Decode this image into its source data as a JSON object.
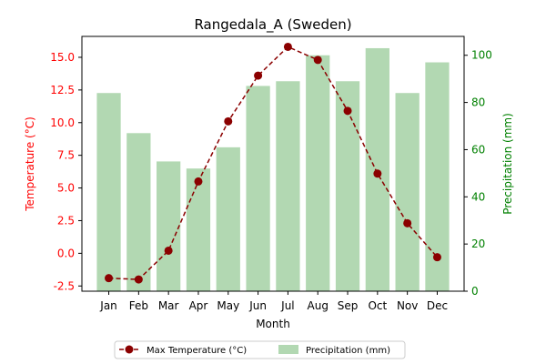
{
  "chart_data": {
    "type": "bar",
    "title": "Rangedala_A (Sweden)",
    "xlabel": "Month",
    "ylabel_left": "Temperature (°C)",
    "ylabel_right": "Precipitation (mm)",
    "categories": [
      "Jan",
      "Feb",
      "Mar",
      "Apr",
      "May",
      "Jun",
      "Jul",
      "Aug",
      "Sep",
      "Oct",
      "Nov",
      "Dec"
    ],
    "ylim_left": [
      -2.9,
      16.6
    ],
    "ylim_right": [
      0,
      108
    ],
    "yticks_left": [
      "-2.5",
      "0.0",
      "2.5",
      "5.0",
      "7.5",
      "10.0",
      "12.5",
      "15.0"
    ],
    "yticks_right": [
      "0",
      "20",
      "40",
      "60",
      "80",
      "100"
    ],
    "series": [
      {
        "name": "Max Temperature (°C)",
        "type": "line",
        "axis": "left",
        "color": "#8b0000",
        "style": "dashed with circle markers",
        "values": [
          -1.9,
          -2.0,
          0.2,
          5.5,
          10.1,
          13.6,
          15.8,
          14.8,
          10.9,
          6.1,
          2.3,
          -0.3
        ]
      },
      {
        "name": "Precipitation (mm)",
        "type": "bar",
        "axis": "right",
        "color": "#b2d8b2",
        "values": [
          84,
          67,
          55,
          52,
          61,
          87,
          89,
          100,
          89,
          103,
          84,
          97
        ]
      }
    ],
    "left_axis_color": "#ff0000",
    "right_axis_color": "#008000",
    "legend_position": "bottom-center",
    "grid": false
  }
}
